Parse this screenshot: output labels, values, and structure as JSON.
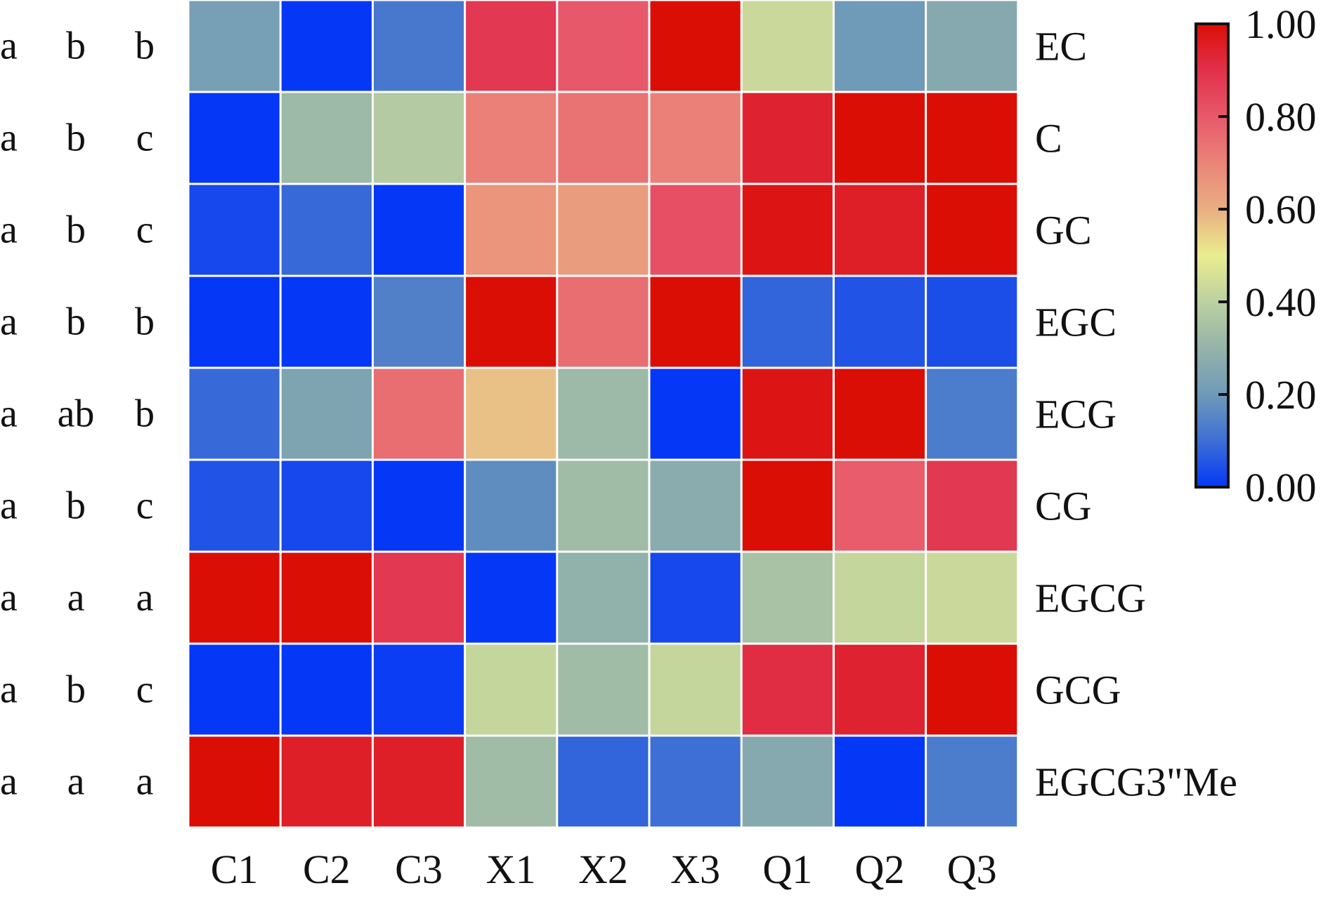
{
  "chart_data": {
    "type": "heatmap",
    "title": "",
    "xlabel": "",
    "ylabel": "",
    "columns": [
      "C1",
      "C2",
      "C3",
      "X1",
      "X2",
      "X3",
      "Q1",
      "Q2",
      "Q3"
    ],
    "rows": [
      "EC",
      "C",
      "GC",
      "EGC",
      "ECG",
      "CG",
      "EGCG",
      "GCG",
      "EGCG3\"Me"
    ],
    "values": [
      [
        0.22,
        0.0,
        0.12,
        0.88,
        0.8,
        1.0,
        0.43,
        0.2,
        0.26
      ],
      [
        0.0,
        0.32,
        0.38,
        0.71,
        0.74,
        0.71,
        0.94,
        1.0,
        1.0
      ],
      [
        0.03,
        0.09,
        0.0,
        0.66,
        0.64,
        0.82,
        0.98,
        0.95,
        1.0
      ],
      [
        0.0,
        0.0,
        0.14,
        1.0,
        0.75,
        1.0,
        0.08,
        0.05,
        0.04
      ],
      [
        0.09,
        0.24,
        0.75,
        0.57,
        0.32,
        0.0,
        0.98,
        1.0,
        0.13
      ],
      [
        0.05,
        0.03,
        0.0,
        0.17,
        0.33,
        0.27,
        1.0,
        0.79,
        0.88
      ],
      [
        1.0,
        1.0,
        0.88,
        0.0,
        0.29,
        0.03,
        0.35,
        0.42,
        0.43
      ],
      [
        0.0,
        0.0,
        0.01,
        0.42,
        0.33,
        0.42,
        0.91,
        0.94,
        1.0
      ],
      [
        1.0,
        0.95,
        0.95,
        0.33,
        0.08,
        0.1,
        0.26,
        0.0,
        0.13
      ]
    ],
    "significance_letters": [
      [
        "a",
        "b",
        "b"
      ],
      [
        "a",
        "b",
        "c"
      ],
      [
        "a",
        "b",
        "c"
      ],
      [
        "a",
        "b",
        "b"
      ],
      [
        "a",
        "ab",
        "b"
      ],
      [
        "a",
        "b",
        "c"
      ],
      [
        "a",
        "a",
        "a"
      ],
      [
        "a",
        "b",
        "c"
      ],
      [
        "a",
        "a",
        "a"
      ]
    ],
    "colorbar": {
      "range": [
        0,
        1
      ],
      "ticks": [
        0.0,
        0.2,
        0.4,
        0.6,
        0.8,
        1.0
      ],
      "tick_labels": [
        "0.00",
        "0.20",
        "0.40",
        "0.60",
        "0.80",
        "1.00"
      ],
      "colormap": [
        {
          "v": 0.0,
          "color": "#0537f7"
        },
        {
          "v": 0.1,
          "color": "#3d6fd4"
        },
        {
          "v": 0.2,
          "color": "#6f9ab8"
        },
        {
          "v": 0.3,
          "color": "#95b3a9"
        },
        {
          "v": 0.4,
          "color": "#bcd0a0"
        },
        {
          "v": 0.5,
          "color": "#eaed8e"
        },
        {
          "v": 0.6,
          "color": "#e9ae82"
        },
        {
          "v": 0.7,
          "color": "#ea8478"
        },
        {
          "v": 0.8,
          "color": "#e8586b"
        },
        {
          "v": 0.9,
          "color": "#e2304a"
        },
        {
          "v": 1.0,
          "color": "#db0e06"
        }
      ],
      "placement": "right"
    },
    "grid_line_color": "#ffffff"
  }
}
